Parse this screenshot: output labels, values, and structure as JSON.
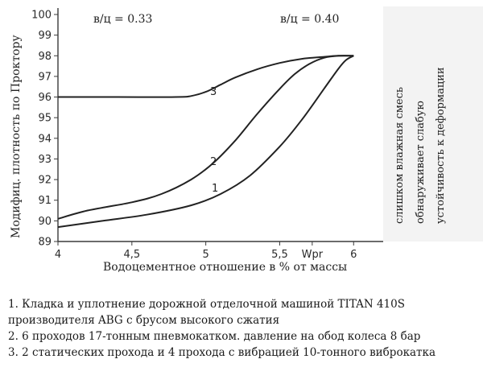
{
  "chart_data": {
    "type": "line",
    "xlabel": "Водоцементное отношение в % от массы",
    "ylabel": "Модифиц. плотность по Проктору",
    "xlim": [
      4,
      6.2
    ],
    "ylim": [
      89,
      100
    ],
    "x_ticks": [
      {
        "value": 4,
        "label": "4"
      },
      {
        "value": 4.5,
        "label": "4,5"
      },
      {
        "value": 5,
        "label": "5"
      },
      {
        "value": 5.5,
        "label": "5,5"
      },
      {
        "value": 5.72,
        "label": "Wpr"
      },
      {
        "value": 6,
        "label": "6"
      }
    ],
    "y_ticks": [
      89,
      90,
      91,
      92,
      93,
      94,
      95,
      96,
      97,
      98,
      99,
      100
    ],
    "grid": false,
    "series": [
      {
        "name": "1",
        "x": [
          4.0,
          4.3,
          4.6,
          4.9,
          5.1,
          5.3,
          5.5,
          5.65,
          5.8,
          5.9,
          5.95,
          6.0
        ],
        "y": [
          89.7,
          90.0,
          90.3,
          90.75,
          91.3,
          92.2,
          93.6,
          94.9,
          96.4,
          97.4,
          97.8,
          98.0
        ]
      },
      {
        "name": "2",
        "x": [
          4.0,
          4.2,
          4.5,
          4.7,
          4.9,
          5.05,
          5.2,
          5.35,
          5.5,
          5.6,
          5.7,
          5.8,
          5.9,
          6.0
        ],
        "y": [
          90.1,
          90.5,
          90.9,
          91.3,
          92.0,
          92.8,
          93.9,
          95.2,
          96.4,
          97.1,
          97.6,
          97.9,
          98.0,
          98.0
        ]
      },
      {
        "name": "3",
        "x": [
          4.0,
          4.4,
          4.8,
          4.9,
          5.0,
          5.1,
          5.2,
          5.35,
          5.5,
          5.65,
          5.8,
          5.9,
          6.0
        ],
        "y": [
          96.0,
          96.0,
          96.0,
          96.05,
          96.25,
          96.6,
          96.95,
          97.35,
          97.65,
          97.85,
          97.95,
          98.0,
          98.0
        ]
      }
    ],
    "annotations": {
      "wc_left": "в/ц = 0.33",
      "wc_right": "в/ц = 0.40",
      "wet_note_line1": "слишком влажная смесь",
      "wet_note_line2": "обнаруживает слабую",
      "wet_note_line3": "устойчивость к деформации"
    }
  },
  "legend": [
    "1. Кладка и уплотнение дорожной отделочной машиной TITAN 410S производителя ABG с брусом высокого сжатия",
    "2. 6 проходов 17-тонным пневмокатком. давление на обод колеса 8 бар",
    "3. 2 статических прохода и 4 прохода с вибрацией 10-тонного виброкатка"
  ]
}
